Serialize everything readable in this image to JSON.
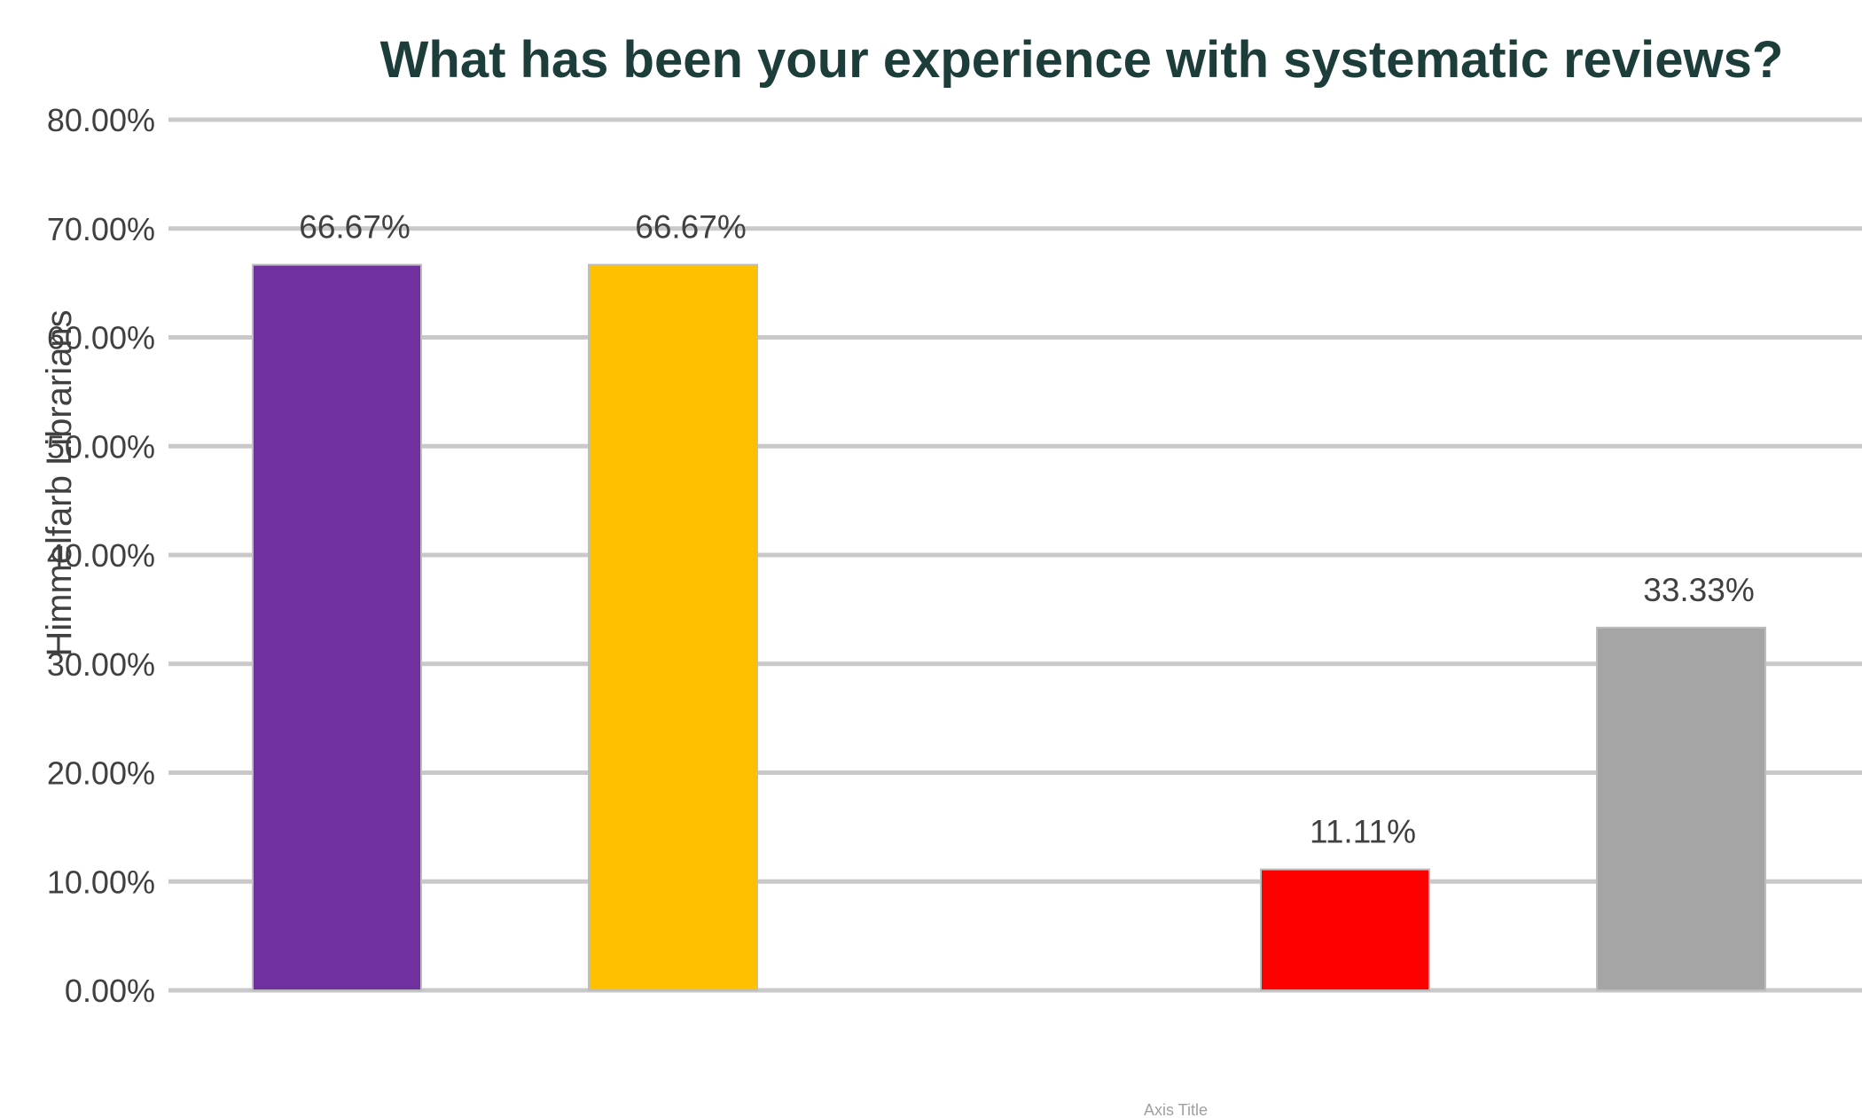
{
  "chart_data": {
    "type": "bar",
    "title": "What has been your experience with systematic reviews?",
    "ylabel": "Himmelfarb Librarians",
    "xlabel": "Axis Title",
    "ylim": [
      0,
      0.8
    ],
    "yticks": [
      0,
      0.1,
      0.2,
      0.3,
      0.4,
      0.5,
      0.6,
      0.7,
      0.8
    ],
    "ytick_labels": [
      "0.00%",
      "10.00%",
      "20.00%",
      "30.00%",
      "40.00%",
      "50.00%",
      "60.00%",
      "70.00%",
      "80.00%"
    ],
    "grid": true,
    "legend": "none",
    "categories": [
      "",
      "",
      "",
      "",
      ""
    ],
    "values": [
      0.6667,
      0.6667,
      0,
      0.1111,
      0.3333
    ],
    "data_labels": [
      "66.67%",
      "66.67%",
      "",
      "11.11%",
      "33.33%"
    ],
    "colors": [
      "#7030a0",
      "#ffc000",
      "#4472c4",
      "#ff0000",
      "#a5a5a5"
    ]
  },
  "colors": {
    "title": "#1d3d3a",
    "grid": "#c9c9c9",
    "tick_text": "#404040",
    "data_label_text": "#404040",
    "axis_title_text": "#a0a0a0"
  }
}
